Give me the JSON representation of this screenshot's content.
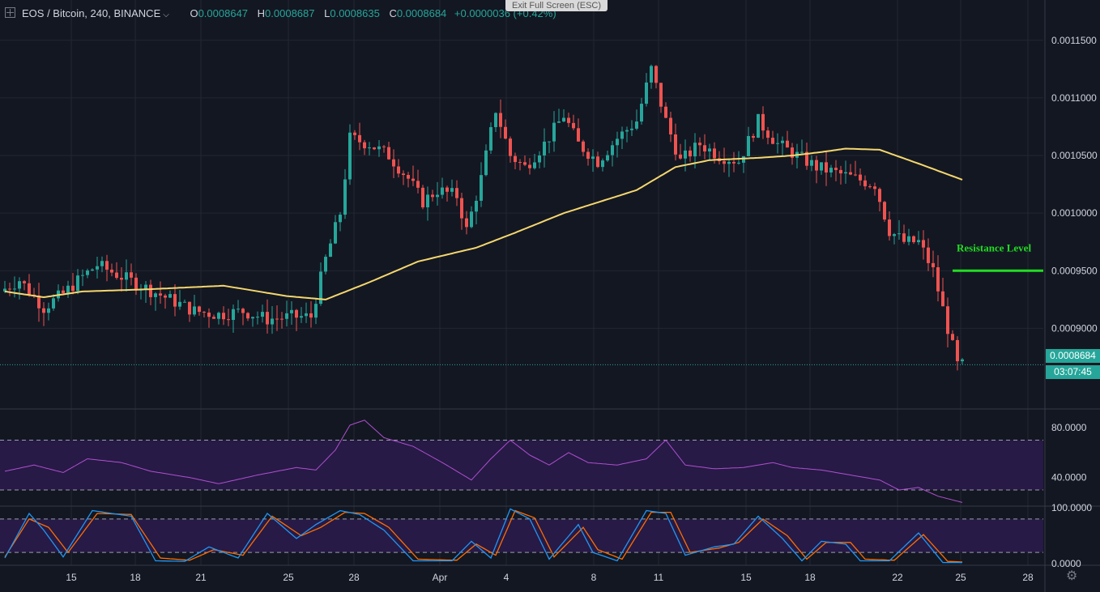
{
  "header": {
    "symbol": "EOS / Bitcoin, 240, BINANCE",
    "open_label": "O",
    "open": "0.0008647",
    "high_label": "H",
    "high": "0.0008687",
    "low_label": "L",
    "low": "0.0008635",
    "close_label": "C",
    "close": "0.0008684",
    "change": "+0.0000036 (+0.42%)"
  },
  "overlay": {
    "exit_fullscreen": "Exit Full Screen (ESC)"
  },
  "current_price": {
    "label": "0.0008684",
    "countdown": "03:07:45",
    "value": 0.0008684,
    "color": "#26a69a"
  },
  "annotation": {
    "text": "Resistance Level",
    "level": 0.00095,
    "color": "#22dd22"
  },
  "colors": {
    "up": "#26a69a",
    "down": "#ef5350",
    "ma": "#f5d76e",
    "rsi": "#b04fd0",
    "stoch_k": "#2196f3",
    "stoch_d": "#ff6d00",
    "band": "#2a1b4a",
    "grid": "#232733"
  },
  "chart_data": [
    {
      "type": "candlestick",
      "title": "EOS / Bitcoin, 240, BINANCE",
      "x_ticks": [
        "15",
        "18",
        "21",
        "25",
        "28",
        "Apr",
        "4",
        "8",
        "11",
        "15",
        "18",
        "22",
        "25",
        "28"
      ],
      "y_ticks": [
        "0.0011500",
        "0.0011000",
        "0.0010500",
        "0.0010000",
        "0.0009500",
        "0.0009000"
      ],
      "ylim": [
        0.00083,
        0.001185
      ],
      "anchors": [
        {
          "t": 0,
          "p": 0.000932
        },
        {
          "t": 4,
          "p": 0.000942
        },
        {
          "t": 9,
          "p": 0.000918
        },
        {
          "t": 13,
          "p": 0.00093
        },
        {
          "t": 17,
          "p": 0.000945
        },
        {
          "t": 20,
          "p": 0.000955
        },
        {
          "t": 25,
          "p": 0.000945
        },
        {
          "t": 30,
          "p": 0.000935
        },
        {
          "t": 35,
          "p": 0.000925
        },
        {
          "t": 40,
          "p": 0.000915
        },
        {
          "t": 45,
          "p": 0.000912
        },
        {
          "t": 50,
          "p": 0.000915
        },
        {
          "t": 55,
          "p": 0.000908
        },
        {
          "t": 60,
          "p": 0.00091
        },
        {
          "t": 64,
          "p": 0.00091
        },
        {
          "t": 67,
          "p": 0.00096
        },
        {
          "t": 70,
          "p": 0.001
        },
        {
          "t": 72,
          "p": 0.001065
        },
        {
          "t": 76,
          "p": 0.00106
        },
        {
          "t": 80,
          "p": 0.00105
        },
        {
          "t": 84,
          "p": 0.00103
        },
        {
          "t": 87,
          "p": 0.00101
        },
        {
          "t": 90,
          "p": 0.00102
        },
        {
          "t": 94,
          "p": 0.001015
        },
        {
          "t": 96,
          "p": 0.000985
        },
        {
          "t": 99,
          "p": 0.00103
        },
        {
          "t": 102,
          "p": 0.00109
        },
        {
          "t": 105,
          "p": 0.00105
        },
        {
          "t": 108,
          "p": 0.00104
        },
        {
          "t": 112,
          "p": 0.00106
        },
        {
          "t": 116,
          "p": 0.001085
        },
        {
          "t": 119,
          "p": 0.00106
        },
        {
          "t": 123,
          "p": 0.001045
        },
        {
          "t": 127,
          "p": 0.001065
        },
        {
          "t": 131,
          "p": 0.00108
        },
        {
          "t": 134,
          "p": 0.001125
        },
        {
          "t": 137,
          "p": 0.00108
        },
        {
          "t": 140,
          "p": 0.001045
        },
        {
          "t": 144,
          "p": 0.00106
        },
        {
          "t": 148,
          "p": 0.00105
        },
        {
          "t": 152,
          "p": 0.001045
        },
        {
          "t": 156,
          "p": 0.00108
        },
        {
          "t": 160,
          "p": 0.00106
        },
        {
          "t": 164,
          "p": 0.00105
        },
        {
          "t": 168,
          "p": 0.00104
        },
        {
          "t": 172,
          "p": 0.001035
        },
        {
          "t": 176,
          "p": 0.00103
        },
        {
          "t": 180,
          "p": 0.001025
        },
        {
          "t": 183,
          "p": 0.000985
        },
        {
          "t": 186,
          "p": 0.000975
        },
        {
          "t": 189,
          "p": 0.000975
        },
        {
          "t": 192,
          "p": 0.00095
        },
        {
          "t": 195,
          "p": 0.0009
        },
        {
          "t": 197,
          "p": 0.000868
        }
      ],
      "ma": [
        {
          "t": 0,
          "p": 0.000932
        },
        {
          "t": 8,
          "p": 0.000927
        },
        {
          "t": 16,
          "p": 0.000932
        },
        {
          "t": 30,
          "p": 0.000934
        },
        {
          "t": 45,
          "p": 0.000937
        },
        {
          "t": 58,
          "p": 0.000928
        },
        {
          "t": 66,
          "p": 0.000925
        },
        {
          "t": 75,
          "p": 0.00094
        },
        {
          "t": 85,
          "p": 0.000958
        },
        {
          "t": 97,
          "p": 0.00097
        },
        {
          "t": 105,
          "p": 0.000983
        },
        {
          "t": 115,
          "p": 0.001
        },
        {
          "t": 130,
          "p": 0.00102
        },
        {
          "t": 138,
          "p": 0.00104
        },
        {
          "t": 145,
          "p": 0.001046
        },
        {
          "t": 155,
          "p": 0.001048
        },
        {
          "t": 162,
          "p": 0.00105
        },
        {
          "t": 168,
          "p": 0.001053
        },
        {
          "t": 173,
          "p": 0.001056
        },
        {
          "t": 180,
          "p": 0.001055
        },
        {
          "t": 188,
          "p": 0.001043
        },
        {
          "t": 197,
          "p": 0.001029
        }
      ]
    },
    {
      "type": "line",
      "y_ticks": [
        "80.0000",
        "40.0000"
      ],
      "ylim": [
        17,
        95
      ],
      "bands": [
        70,
        30
      ],
      "values": [
        {
          "t": 0,
          "v": 45
        },
        {
          "t": 6,
          "v": 50
        },
        {
          "t": 12,
          "v": 44
        },
        {
          "t": 17,
          "v": 55
        },
        {
          "t": 24,
          "v": 52
        },
        {
          "t": 30,
          "v": 45
        },
        {
          "t": 38,
          "v": 40
        },
        {
          "t": 44,
          "v": 35
        },
        {
          "t": 52,
          "v": 42
        },
        {
          "t": 60,
          "v": 48
        },
        {
          "t": 64,
          "v": 46
        },
        {
          "t": 68,
          "v": 62
        },
        {
          "t": 71,
          "v": 82
        },
        {
          "t": 74,
          "v": 86
        },
        {
          "t": 78,
          "v": 72
        },
        {
          "t": 84,
          "v": 65
        },
        {
          "t": 90,
          "v": 52
        },
        {
          "t": 96,
          "v": 38
        },
        {
          "t": 100,
          "v": 55
        },
        {
          "t": 104,
          "v": 70
        },
        {
          "t": 108,
          "v": 58
        },
        {
          "t": 112,
          "v": 50
        },
        {
          "t": 116,
          "v": 60
        },
        {
          "t": 120,
          "v": 52
        },
        {
          "t": 126,
          "v": 50
        },
        {
          "t": 132,
          "v": 55
        },
        {
          "t": 136,
          "v": 70
        },
        {
          "t": 140,
          "v": 50
        },
        {
          "t": 146,
          "v": 47
        },
        {
          "t": 152,
          "v": 48
        },
        {
          "t": 158,
          "v": 52
        },
        {
          "t": 162,
          "v": 48
        },
        {
          "t": 168,
          "v": 46
        },
        {
          "t": 174,
          "v": 42
        },
        {
          "t": 180,
          "v": 38
        },
        {
          "t": 184,
          "v": 30
        },
        {
          "t": 188,
          "v": 32
        },
        {
          "t": 192,
          "v": 25
        },
        {
          "t": 197,
          "v": 20
        }
      ]
    },
    {
      "type": "line",
      "y_ticks": [
        "100.0000",
        "0.0000"
      ],
      "ylim": [
        -3,
        103
      ],
      "bands": [
        80,
        20
      ],
      "k": [
        {
          "t": 0,
          "v": 10
        },
        {
          "t": 5,
          "v": 90
        },
        {
          "t": 8,
          "v": 60
        },
        {
          "t": 12,
          "v": 12
        },
        {
          "t": 18,
          "v": 95
        },
        {
          "t": 26,
          "v": 85
        },
        {
          "t": 31,
          "v": 5
        },
        {
          "t": 37,
          "v": 4
        },
        {
          "t": 42,
          "v": 30
        },
        {
          "t": 48,
          "v": 10
        },
        {
          "t": 54,
          "v": 90
        },
        {
          "t": 60,
          "v": 45
        },
        {
          "t": 64,
          "v": 70
        },
        {
          "t": 69,
          "v": 95
        },
        {
          "t": 73,
          "v": 88
        },
        {
          "t": 78,
          "v": 60
        },
        {
          "t": 84,
          "v": 5
        },
        {
          "t": 92,
          "v": 5
        },
        {
          "t": 96,
          "v": 40
        },
        {
          "t": 100,
          "v": 10
        },
        {
          "t": 104,
          "v": 98
        },
        {
          "t": 108,
          "v": 80
        },
        {
          "t": 112,
          "v": 8
        },
        {
          "t": 118,
          "v": 70
        },
        {
          "t": 121,
          "v": 20
        },
        {
          "t": 126,
          "v": 5
        },
        {
          "t": 132,
          "v": 95
        },
        {
          "t": 136,
          "v": 90
        },
        {
          "t": 140,
          "v": 15
        },
        {
          "t": 146,
          "v": 30
        },
        {
          "t": 150,
          "v": 35
        },
        {
          "t": 155,
          "v": 85
        },
        {
          "t": 160,
          "v": 45
        },
        {
          "t": 164,
          "v": 5
        },
        {
          "t": 168,
          "v": 40
        },
        {
          "t": 173,
          "v": 35
        },
        {
          "t": 176,
          "v": 5
        },
        {
          "t": 182,
          "v": 5
        },
        {
          "t": 188,
          "v": 55
        },
        {
          "t": 193,
          "v": 2
        },
        {
          "t": 197,
          "v": 2
        }
      ],
      "d": [
        {
          "t": 0,
          "v": 12
        },
        {
          "t": 5,
          "v": 80
        },
        {
          "t": 9,
          "v": 65
        },
        {
          "t": 13,
          "v": 20
        },
        {
          "t": 19,
          "v": 90
        },
        {
          "t": 26,
          "v": 88
        },
        {
          "t": 32,
          "v": 10
        },
        {
          "t": 38,
          "v": 6
        },
        {
          "t": 43,
          "v": 25
        },
        {
          "t": 49,
          "v": 15
        },
        {
          "t": 55,
          "v": 85
        },
        {
          "t": 61,
          "v": 50
        },
        {
          "t": 65,
          "v": 65
        },
        {
          "t": 70,
          "v": 92
        },
        {
          "t": 74,
          "v": 90
        },
        {
          "t": 79,
          "v": 65
        },
        {
          "t": 85,
          "v": 8
        },
        {
          "t": 93,
          "v": 6
        },
        {
          "t": 97,
          "v": 35
        },
        {
          "t": 101,
          "v": 15
        },
        {
          "t": 105,
          "v": 95
        },
        {
          "t": 109,
          "v": 82
        },
        {
          "t": 113,
          "v": 12
        },
        {
          "t": 119,
          "v": 65
        },
        {
          "t": 122,
          "v": 25
        },
        {
          "t": 127,
          "v": 8
        },
        {
          "t": 133,
          "v": 92
        },
        {
          "t": 137,
          "v": 92
        },
        {
          "t": 141,
          "v": 20
        },
        {
          "t": 147,
          "v": 28
        },
        {
          "t": 151,
          "v": 38
        },
        {
          "t": 156,
          "v": 80
        },
        {
          "t": 161,
          "v": 50
        },
        {
          "t": 165,
          "v": 8
        },
        {
          "t": 169,
          "v": 38
        },
        {
          "t": 174,
          "v": 38
        },
        {
          "t": 177,
          "v": 8
        },
        {
          "t": 183,
          "v": 6
        },
        {
          "t": 189,
          "v": 52
        },
        {
          "t": 194,
          "v": 4
        },
        {
          "t": 197,
          "v": 3
        }
      ]
    }
  ]
}
